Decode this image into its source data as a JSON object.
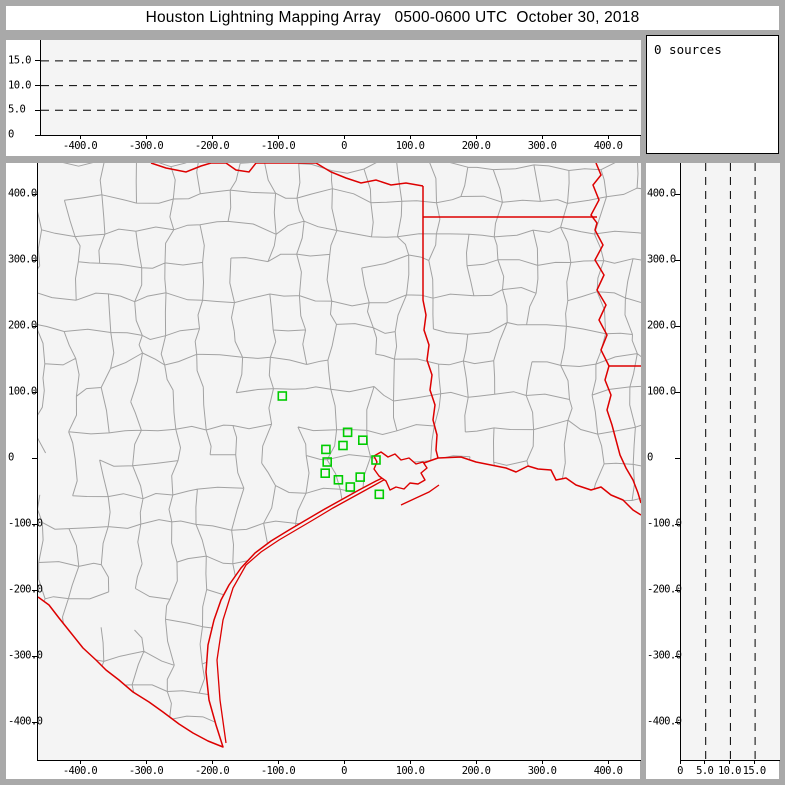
{
  "window": {
    "title": "Houston Lightning Mapping Array   0500-0600 UTC  October 30, 2018"
  },
  "sources_box": {
    "label": "0 sources"
  },
  "colors": {
    "frame": "#a9a9a9",
    "panel_bg": "#ffffff",
    "plot_bg": "#f4f4f4",
    "county_line": "#a2a2a2",
    "state_line": "#dd0000",
    "station": "#00cc00",
    "axis": "#000000",
    "text": "#000000"
  },
  "axes": {
    "ew_ticks": {
      "values": [
        -400,
        -300,
        -200,
        -100,
        0,
        100,
        200,
        300,
        400
      ],
      "labels": [
        "-400.0",
        "-300.0",
        "-200.0",
        "-100.0",
        "0",
        "100.0",
        "200.0",
        "300.0",
        "400.0"
      ]
    },
    "ns_ticks": {
      "values": [
        400,
        300,
        200,
        100,
        0,
        -100,
        -200,
        -300,
        -400
      ],
      "labels": [
        "400.0",
        "300.0",
        "200.0",
        "100.0",
        "0",
        "-100.0",
        "-200.0",
        "-300.0",
        "-400.0"
      ]
    },
    "alt_ticks": {
      "values": [
        0,
        5,
        10,
        15
      ],
      "labels": [
        "0",
        "5.0",
        "10.0",
        "15.0"
      ]
    },
    "alt_gridlines": [
      5,
      10,
      15
    ]
  },
  "chart_data": [
    {
      "type": "scatter",
      "panel": "altitude-vs-east-west",
      "xlim": [
        -461,
        448
      ],
      "ylim": [
        0,
        19.2
      ],
      "x_tick_values": [
        -400,
        -300,
        -200,
        -100,
        0,
        100,
        200,
        300,
        400
      ],
      "y_tick_values": [
        0,
        5,
        10,
        15
      ],
      "gridlines_y_dashed": [
        5,
        10,
        15
      ],
      "points": [],
      "n_points": 0
    },
    {
      "type": "scatter",
      "panel": "plan-view-map",
      "xlim": [
        -461,
        448
      ],
      "ylim": [
        -458,
        447
      ],
      "x_tick_values": [
        -400,
        -300,
        -200,
        -100,
        0,
        100,
        200,
        300,
        400
      ],
      "y_tick_values": [
        400,
        300,
        200,
        100,
        0,
        -100,
        -200,
        -300,
        -400
      ],
      "points": [],
      "n_points": 0,
      "stations_km": [
        [
          -95,
          94
        ],
        [
          4,
          39
        ],
        [
          27,
          27
        ],
        [
          -3,
          19
        ],
        [
          -29,
          13
        ],
        [
          -27,
          -6
        ],
        [
          -30,
          -23
        ],
        [
          -10,
          -33
        ],
        [
          23,
          -29
        ],
        [
          8,
          -44
        ],
        [
          47,
          -3
        ],
        [
          52,
          -55
        ]
      ],
      "basemap": {
        "region": "Texas / Oklahoma / Arkansas / Louisiana / Gulf of Mexico",
        "county_lines_color": "gray",
        "state_lines_and_coast_color": "red"
      }
    },
    {
      "type": "scatter",
      "panel": "altitude-vs-north-south",
      "xlim": [
        0,
        20
      ],
      "ylim": [
        -458,
        447
      ],
      "x_tick_values": [
        0,
        5,
        10,
        15
      ],
      "y_tick_values": [
        400,
        300,
        200,
        100,
        0,
        -100,
        -200,
        -300,
        -400
      ],
      "gridlines_x_dashed": [
        5,
        10,
        15
      ],
      "points": [],
      "n_points": 0
    }
  ]
}
